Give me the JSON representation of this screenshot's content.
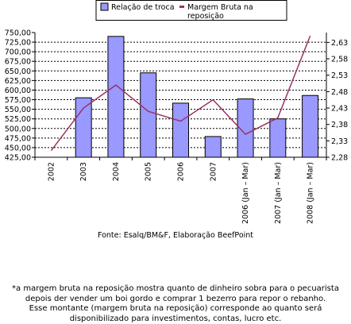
{
  "chart_data": {
    "type": "bar",
    "categories": [
      "2002",
      "2003",
      "2004",
      "2005",
      "2006",
      "2007",
      "2006 (Jan – Mar)",
      "2007 (Jan – Mar)",
      "2008 (Jan – Mar)"
    ],
    "series": [
      {
        "name": "Relação de troca",
        "type": "bar",
        "axis": "left",
        "color": "#9999ff",
        "values": [
          null,
          580,
          740,
          645,
          566,
          479,
          577,
          525,
          586
        ]
      },
      {
        "name": "Margem Bruta na reposição",
        "type": "line",
        "axis": "right",
        "color": "#993366",
        "values": [
          2.3,
          2.43,
          2.5,
          2.42,
          2.39,
          2.455,
          2.35,
          2.4,
          2.65
        ]
      }
    ],
    "y_left": {
      "min": 425,
      "max": 750,
      "ticks": [
        "425,00",
        "450,00",
        "475,00",
        "500,00",
        "525,00",
        "550,00",
        "575,00",
        "600,00",
        "625,00",
        "650,00",
        "675,00",
        "700,00",
        "725,00",
        "750,00"
      ]
    },
    "y_right": {
      "min": 2.28,
      "max": 2.66,
      "ticks": [
        "2,28",
        "2,33",
        "2,38",
        "2,43",
        "2,48",
        "2,53",
        "2,58",
        "2,63"
      ]
    },
    "legend_position": "top",
    "grid": "horizontal dashed",
    "source": "Fonte: Esalq/BM&F, Elaboração BeefPoint"
  },
  "legend": {
    "bar_label": "Relação de troca",
    "line_label_1": "Margem Bruta na",
    "line_label_2": "reposição"
  },
  "footnote": {
    "line1": "*a margem bruta na reposição mostra quanto de dinheiro sobra para o pecuarista",
    "line2": "depois der vender um boi gordo e comprar 1 bezerro para repor o rebanho.",
    "line3": "Esse montante (margem bruta na reposição) corresponde ao quanto será",
    "line4": "disponibilizado para investimentos, contas, lucro etc."
  }
}
